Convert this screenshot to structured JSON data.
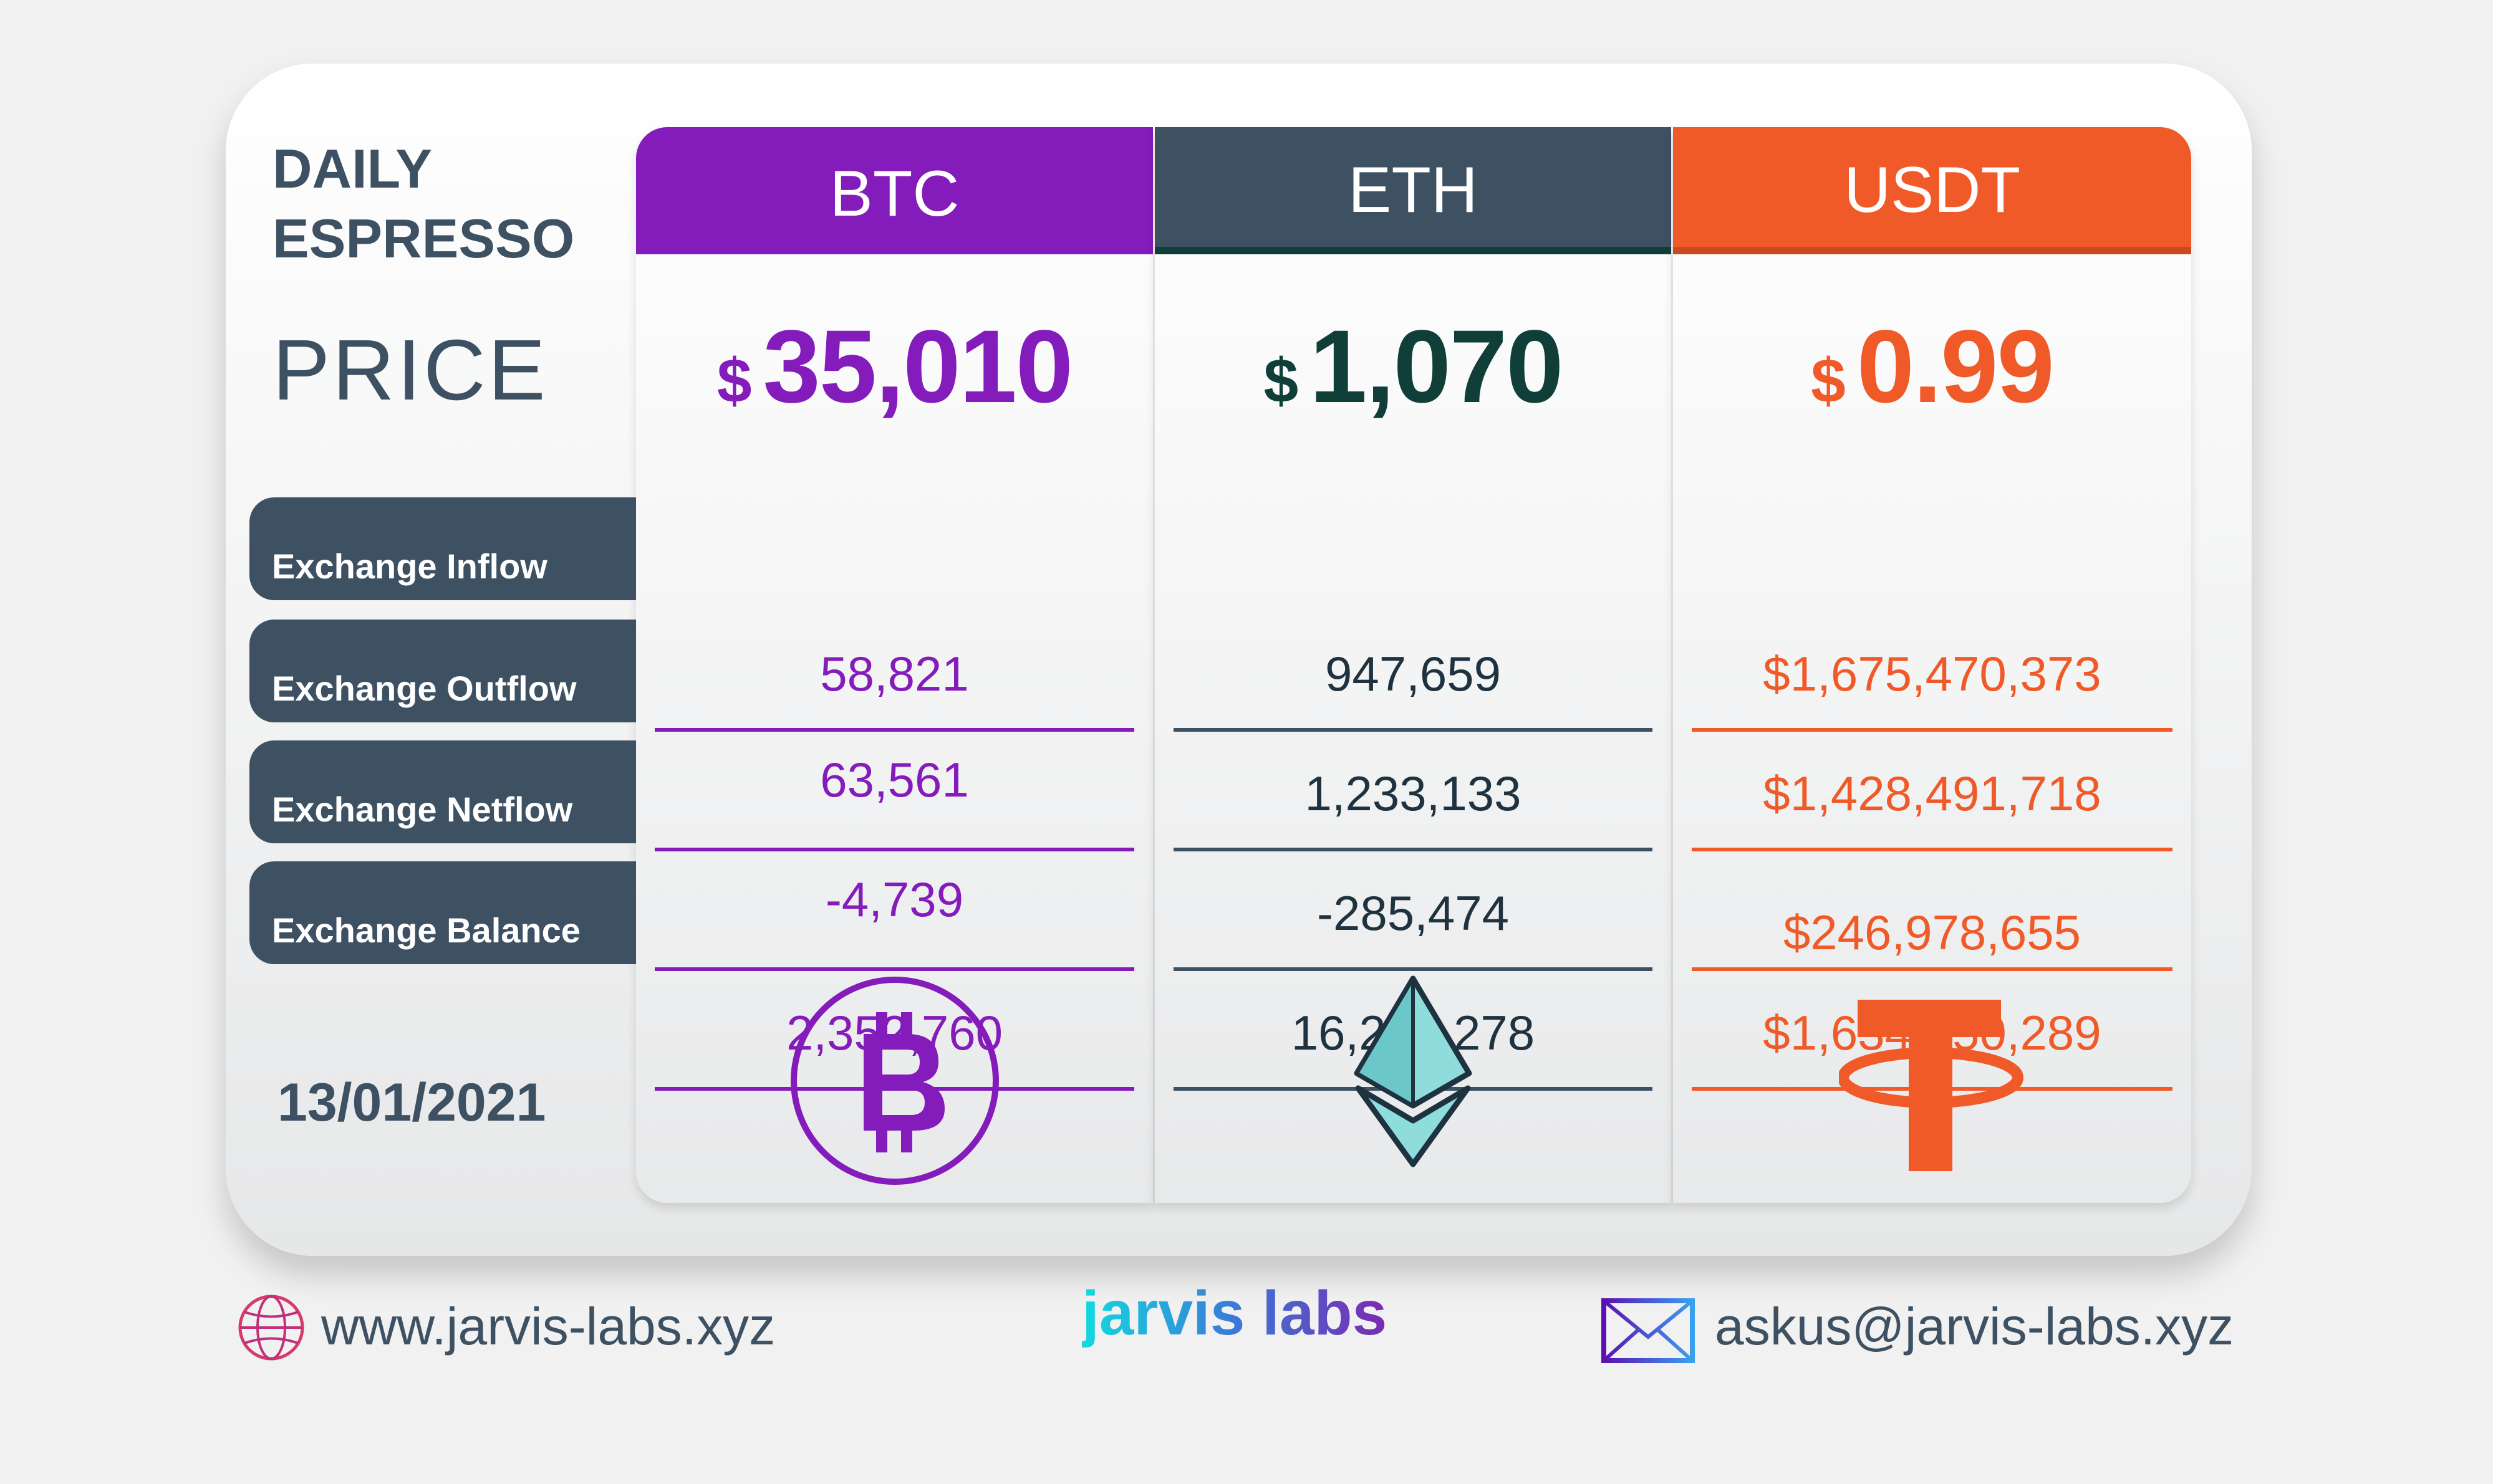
{
  "title": {
    "line1": "DAILY",
    "line2": "ESPRESSO"
  },
  "price_label": "PRICE",
  "date": "13/01/2021",
  "row_labels": [
    "Exchange Inflow",
    "Exchange Outflow",
    "Exchange Netflow",
    "Exchange Balance"
  ],
  "coins": [
    {
      "name": "BTC",
      "currency": "$",
      "price": "35,010",
      "values": [
        "58,821",
        "63,561",
        "-4,739",
        "2,352,760"
      ],
      "color": "#841bbb"
    },
    {
      "name": "ETH",
      "currency": "$",
      "price": "1,070",
      "values": [
        "947,659",
        "1,233,133",
        "-285,474",
        "16,204,278"
      ],
      "color": "#103f3a"
    },
    {
      "name": "USDT",
      "currency": "$",
      "price": "0.99",
      "values": [
        "$1,675,470,373",
        "$1,428,491,718",
        "$246,978,655",
        "$1,634,250,289"
      ],
      "color": "#f05a28"
    }
  ],
  "footer": {
    "website": "www.jarvis-labs.xyz",
    "brand": "jarvis labs",
    "email": "askus@jarvis-labs.xyz"
  }
}
